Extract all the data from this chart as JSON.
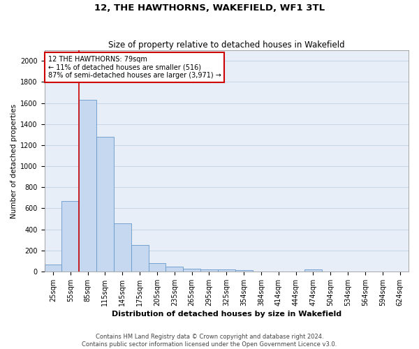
{
  "title": "12, THE HAWTHORNS, WAKEFIELD, WF1 3TL",
  "subtitle": "Size of property relative to detached houses in Wakefield",
  "xlabel": "Distribution of detached houses by size in Wakefield",
  "ylabel": "Number of detached properties",
  "categories": [
    "25sqm",
    "55sqm",
    "85sqm",
    "115sqm",
    "145sqm",
    "175sqm",
    "205sqm",
    "235sqm",
    "265sqm",
    "295sqm",
    "325sqm",
    "354sqm",
    "384sqm",
    "414sqm",
    "444sqm",
    "474sqm",
    "504sqm",
    "534sqm",
    "564sqm",
    "594sqm",
    "624sqm"
  ],
  "values": [
    65,
    670,
    1630,
    1280,
    455,
    250,
    80,
    45,
    25,
    20,
    18,
    15,
    0,
    0,
    0,
    20,
    0,
    0,
    0,
    0,
    0
  ],
  "bar_color": "#c5d8ef",
  "bar_edge_color": "#6699cc",
  "grid_color": "#c8d4e8",
  "vline_color": "#cc0000",
  "vline_pos": 1.5,
  "annotation_text": "12 THE HAWTHORNS: 79sqm\n← 11% of detached houses are smaller (516)\n87% of semi-detached houses are larger (3,971) →",
  "annotation_box_color": "#cc0000",
  "ylim": [
    0,
    2100
  ],
  "yticks": [
    0,
    200,
    400,
    600,
    800,
    1000,
    1200,
    1400,
    1600,
    1800,
    2000
  ],
  "footer_line1": "Contains HM Land Registry data © Crown copyright and database right 2024.",
  "footer_line2": "Contains public sector information licensed under the Open Government Licence v3.0.",
  "background_color": "#ffffff",
  "plot_bg_color": "#e8eef8",
  "title_fontsize": 9.5,
  "subtitle_fontsize": 8.5,
  "xlabel_fontsize": 8,
  "ylabel_fontsize": 7.5,
  "tick_fontsize": 7,
  "annotation_fontsize": 7,
  "footer_fontsize": 6
}
